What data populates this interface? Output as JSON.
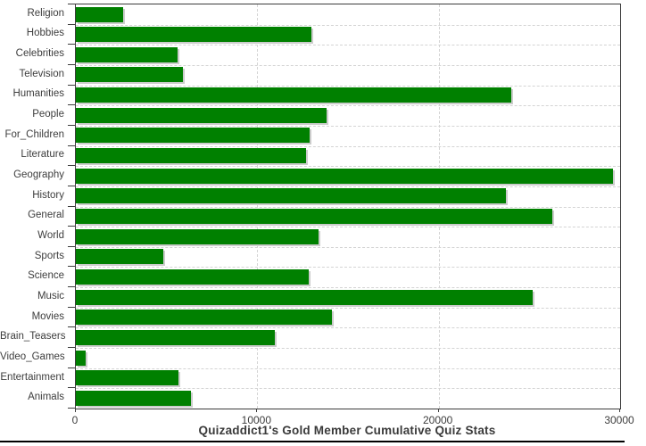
{
  "chart_data": {
    "type": "bar",
    "orientation": "horizontal",
    "title": "Quizaddict1's Gold Member Cumulative Quiz Stats",
    "categories": [
      "Religion",
      "Hobbies",
      "Celebrities",
      "Television",
      "Humanities",
      "People",
      "For_Children",
      "Literature",
      "Geography",
      "History",
      "General",
      "World",
      "Sports",
      "Science",
      "Music",
      "Movies",
      "Brain_Teasers",
      "Video_Games",
      "Entertainment",
      "Animals"
    ],
    "values": [
      2600,
      13000,
      5600,
      5900,
      24000,
      13800,
      12900,
      12700,
      29600,
      23700,
      26250,
      13400,
      4800,
      12850,
      25200,
      14100,
      10950,
      550,
      5650,
      6350
    ],
    "xlabel": "",
    "ylabel": "",
    "xlim": [
      0,
      30000
    ],
    "x_ticks": [
      0,
      10000,
      20000,
      30000
    ],
    "x_tick_labels": [
      "0",
      "10000",
      "20000",
      "30000"
    ],
    "grid": "dashed",
    "legend": "none",
    "bar_color": "#008000",
    "bar_shadow_color": "#cccccc",
    "gridline_color": "#d4d4d4",
    "axis_color": "#3c3c3c",
    "text_color": "#3d3d3d",
    "background_color": "#ffffff"
  }
}
